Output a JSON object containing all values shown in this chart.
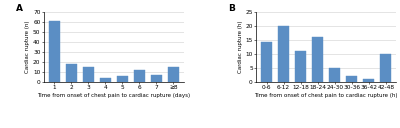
{
  "panel_a": {
    "categories": [
      "1",
      "2",
      "3",
      "4",
      "5",
      "6",
      "7",
      "≥8"
    ],
    "values": [
      61,
      18,
      15,
      4,
      6,
      12,
      7,
      15
    ],
    "xlabel": "Time from onset of chest pain to cardiac rupture (days)",
    "ylabel": "Cardiac rupture (n)",
    "ylim": [
      0,
      70
    ],
    "yticks": [
      0,
      10,
      20,
      30,
      40,
      50,
      60,
      70
    ],
    "label": "A",
    "bar_color": "#5b8ec4"
  },
  "panel_b": {
    "categories": [
      "0-6",
      "6-12",
      "12-18",
      "18-24",
      "24-30",
      "30-36",
      "36-42",
      "42-48"
    ],
    "values": [
      14,
      20,
      11,
      16,
      5,
      2,
      1,
      10
    ],
    "xlabel": "Time from onset of chest pain to cardiac rupture (h)",
    "ylabel": "Cardiac rupture (h)",
    "ylim": [
      0,
      25
    ],
    "yticks": [
      0,
      5,
      10,
      15,
      20,
      25
    ],
    "label": "B",
    "bar_color": "#5b8ec4"
  },
  "background_color": "#ffffff",
  "tick_fontsize": 4.2,
  "axis_label_fontsize": 4.0,
  "panel_label_fontsize": 6.5
}
